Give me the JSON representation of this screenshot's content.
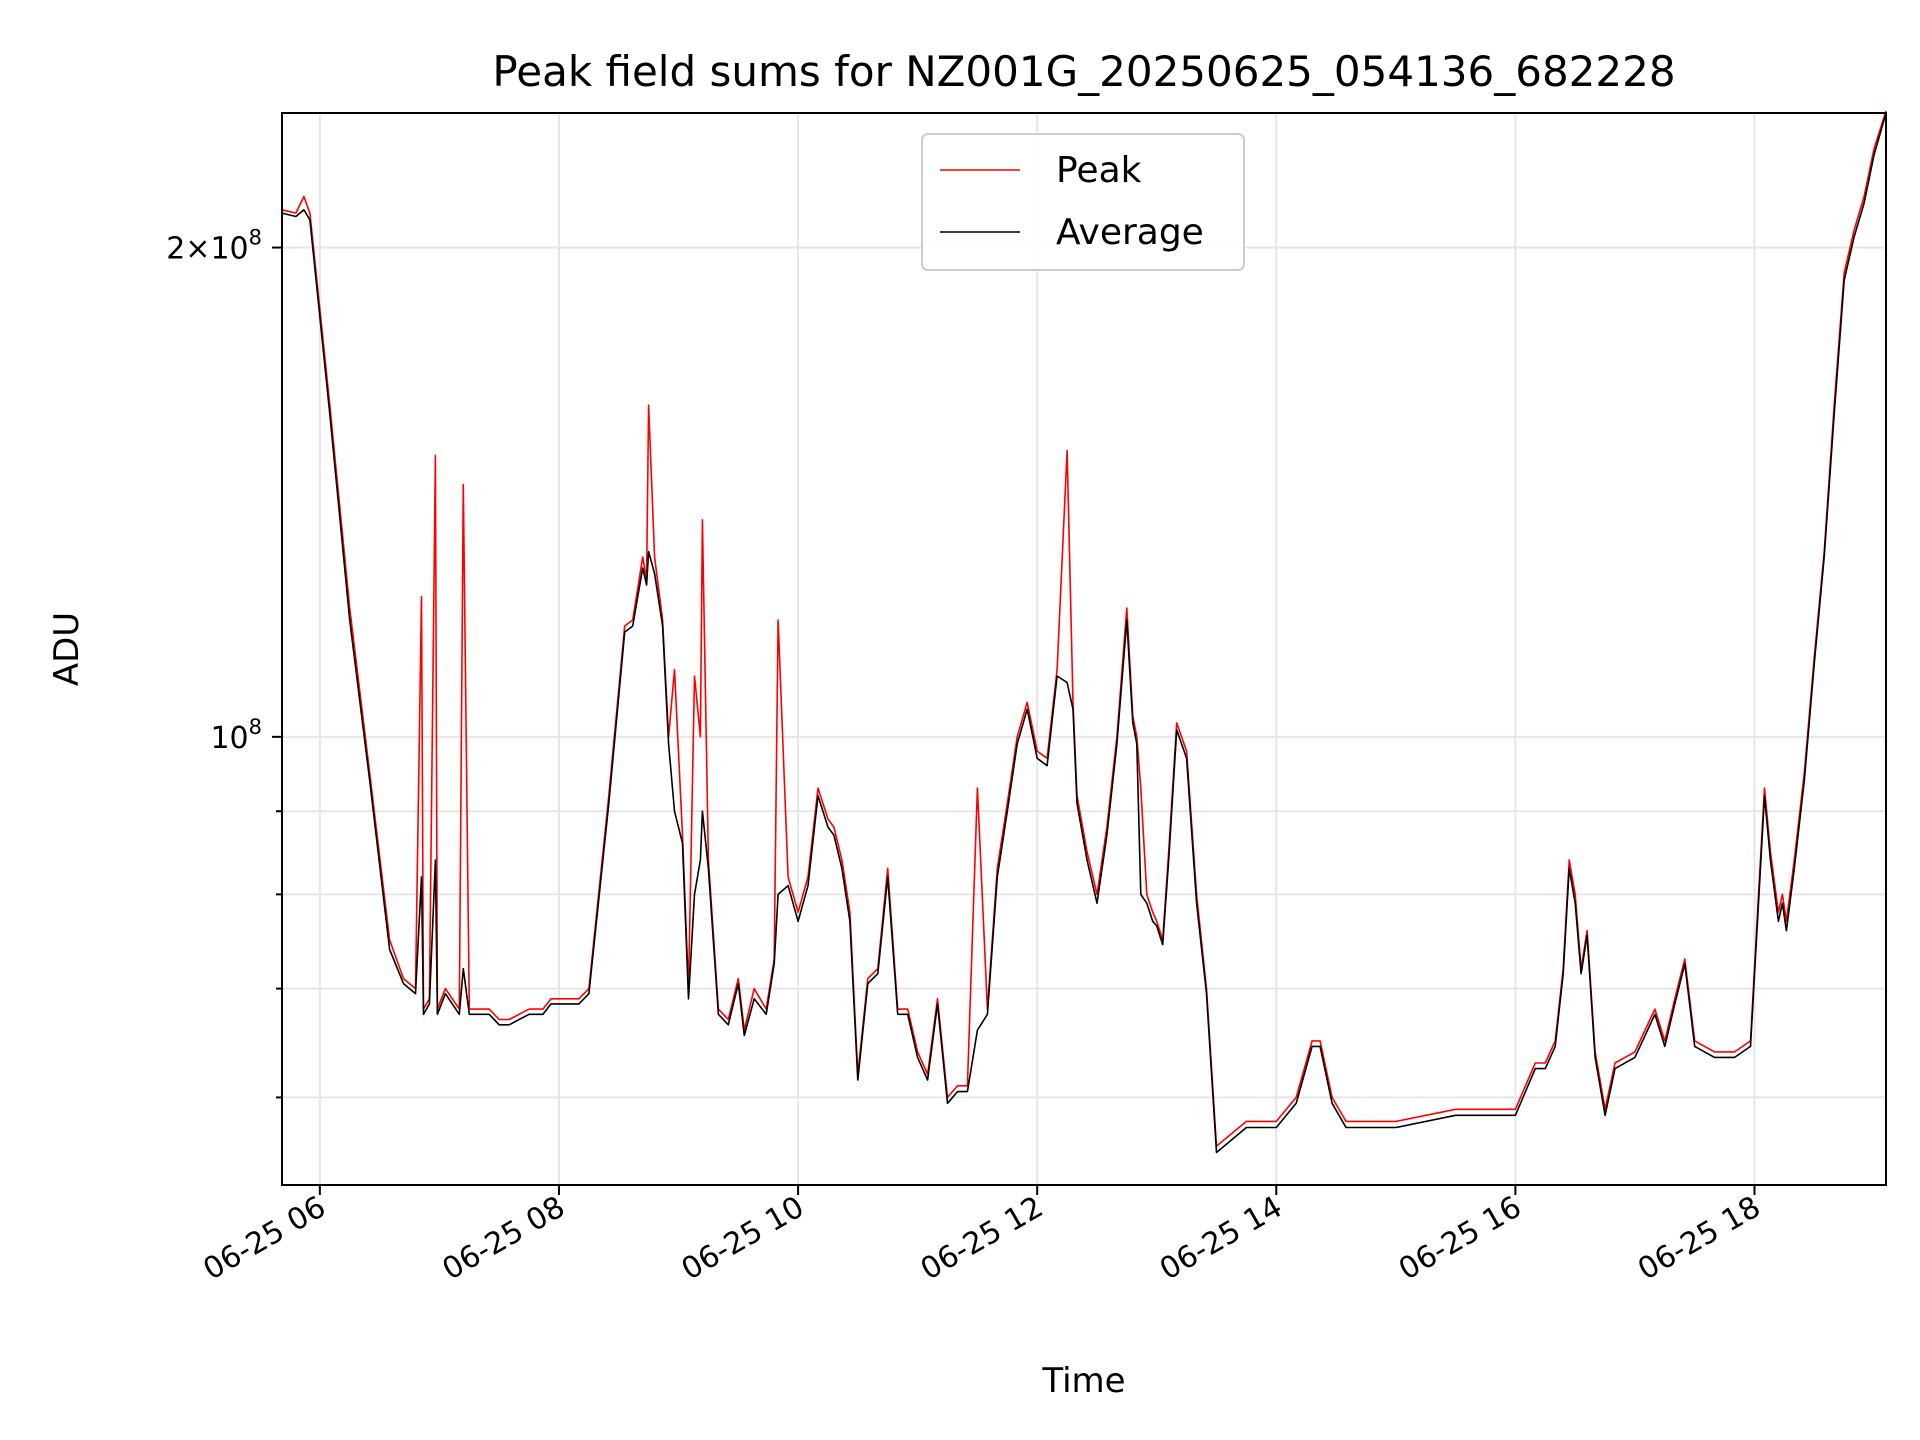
{
  "chart_data": {
    "type": "line",
    "title": "Peak field sums for NZ001G_20250625_054136_682228",
    "xlabel": "Time",
    "ylabel": "ADU",
    "y_scale": "log",
    "grid": true,
    "legend_position": "top-center",
    "xlim": [
      "06-25 05:41",
      "06-25 19:06"
    ],
    "ylim": [
      53000000,
      242000000
    ],
    "x_ticks": [
      "06-25 06",
      "06-25 08",
      "06-25 10",
      "06-25 12",
      "06-25 14",
      "06-25 16",
      "06-25 18"
    ],
    "y_ticks": [
      {
        "value": 100000000,
        "base": "10",
        "exp": "8",
        "mult": ""
      },
      {
        "value": 200000000,
        "base": "10",
        "exp": "8",
        "mult": "2×"
      }
    ],
    "series": [
      {
        "name": "Peak",
        "color": "#ff0000",
        "x": [
          "06-25 05:41",
          "06-25 05:48",
          "06-25 05:52",
          "06-25 05:55",
          "06-25 06:05",
          "06-25 06:15",
          "06-25 06:25",
          "06-25 06:35",
          "06-25 06:42",
          "06-25 06:48",
          "06-25 06:51",
          "06-25 06:52",
          "06-25 06:55",
          "06-25 06:58",
          "06-25 06:59",
          "06-25 07:03",
          "06-25 07:10",
          "06-25 07:12",
          "06-25 07:15",
          "06-25 07:20",
          "06-25 07:25",
          "06-25 07:30",
          "06-25 07:35",
          "06-25 07:40",
          "06-25 07:45",
          "06-25 07:50",
          "06-25 07:52",
          "06-25 07:56",
          "06-25 08:05",
          "06-25 08:10",
          "06-25 08:15",
          "06-25 08:25",
          "06-25 08:33",
          "06-25 08:37",
          "06-25 08:42",
          "06-25 08:44",
          "06-25 08:45",
          "06-25 08:48",
          "06-25 08:52",
          "06-25 08:55",
          "06-25 08:58",
          "06-25 09:02",
          "06-25 09:05",
          "06-25 09:08",
          "06-25 09:11",
          "06-25 09:12",
          "06-25 09:15",
          "06-25 09:20",
          "06-25 09:25",
          "06-25 09:30",
          "06-25 09:33",
          "06-25 09:38",
          "06-25 09:44",
          "06-25 09:48",
          "06-25 09:50",
          "06-25 09:55",
          "06-25 10:00",
          "06-25 10:05",
          "06-25 10:10",
          "06-25 10:15",
          "06-25 10:18",
          "06-25 10:22",
          "06-25 10:26",
          "06-25 10:30",
          "06-25 10:35",
          "06-25 10:40",
          "06-25 10:45",
          "06-25 10:50",
          "06-25 10:55",
          "06-25 11:00",
          "06-25 11:05",
          "06-25 11:10",
          "06-25 11:15",
          "06-25 11:20",
          "06-25 11:25",
          "06-25 11:30",
          "06-25 11:35",
          "06-25 11:40",
          "06-25 11:45",
          "06-25 11:50",
          "06-25 11:55",
          "06-25 12:00",
          "06-25 12:05",
          "06-25 12:10",
          "06-25 12:15",
          "06-25 12:18",
          "06-25 12:20",
          "06-25 12:25",
          "06-25 12:30",
          "06-25 12:35",
          "06-25 12:40",
          "06-25 12:45",
          "06-25 12:48",
          "06-25 12:50",
          "06-25 12:52",
          "06-25 12:55",
          "06-25 12:58",
          "06-25 13:00",
          "06-25 13:03",
          "06-25 13:06",
          "06-25 13:10",
          "06-25 13:15",
          "06-25 13:20",
          "06-25 13:25",
          "06-25 13:30",
          "06-25 13:45",
          "06-25 14:00",
          "06-25 14:10",
          "06-25 14:18",
          "06-25 14:22",
          "06-25 14:28",
          "06-25 14:35",
          "06-25 15:00",
          "06-25 15:30",
          "06-25 16:00",
          "06-25 16:10",
          "06-25 16:15",
          "06-25 16:20",
          "06-25 16:24",
          "06-25 16:27",
          "06-25 16:30",
          "06-25 16:33",
          "06-25 16:36",
          "06-25 16:40",
          "06-25 16:45",
          "06-25 16:50",
          "06-25 17:00",
          "06-25 17:10",
          "06-25 17:15",
          "06-25 17:20",
          "06-25 17:25",
          "06-25 17:30",
          "06-25 17:40",
          "06-25 17:50",
          "06-25 17:58",
          "06-25 18:02",
          "06-25 18:05",
          "06-25 18:08",
          "06-25 18:12",
          "06-25 18:14",
          "06-25 18:16",
          "06-25 18:20",
          "06-25 18:25",
          "06-25 18:30",
          "06-25 18:35",
          "06-25 18:40",
          "06-25 18:45",
          "06-25 18:50",
          "06-25 18:55",
          "06-25 19:00",
          "06-25 19:06"
        ],
        "values": [
          211000000,
          210000000,
          215000000,
          210000000,
          160000000,
          120000000,
          95000000,
          75000000,
          71000000,
          70000000,
          122000000,
          68000000,
          69000000,
          149000000,
          68000000,
          70000000,
          68000000,
          143000000,
          68000000,
          68000000,
          68000000,
          67000000,
          67000000,
          67500000,
          68000000,
          68000000,
          68000000,
          69000000,
          69000000,
          69000000,
          70000000,
          92000000,
          117000000,
          118000000,
          129000000,
          125000000,
          160000000,
          129000000,
          118000000,
          100000000,
          110000000,
          87000000,
          70000000,
          109000000,
          100000000,
          136000000,
          84000000,
          68000000,
          67000000,
          71000000,
          66000000,
          70000000,
          68000000,
          73000000,
          118000000,
          82000000,
          78000000,
          82000000,
          93000000,
          89000000,
          88000000,
          84000000,
          78000000,
          62000000,
          71000000,
          72000000,
          83000000,
          68000000,
          68000000,
          64000000,
          62000000,
          69000000,
          60000000,
          61000000,
          61000000,
          93000000,
          68000000,
          83000000,
          91000000,
          100000000,
          105000000,
          98000000,
          97000000,
          110000000,
          150000000,
          105000000,
          92000000,
          85000000,
          80000000,
          88000000,
          100000000,
          120000000,
          103000000,
          100000000,
          93000000,
          80000000,
          78000000,
          77000000,
          75000000,
          85000000,
          102000000,
          98000000,
          80000000,
          70000000,
          56000000,
          58000000,
          58000000,
          60000000,
          65000000,
          65000000,
          60000000,
          58000000,
          58000000,
          59000000,
          59000000,
          63000000,
          63000000,
          65000000,
          72000000,
          84000000,
          80000000,
          72000000,
          76000000,
          64000000,
          59000000,
          63000000,
          64000000,
          68000000,
          65000000,
          69000000,
          73000000,
          65000000,
          64000000,
          64000000,
          65000000,
          80000000,
          93000000,
          85000000,
          78000000,
          80000000,
          77000000,
          84000000,
          95000000,
          112000000,
          130000000,
          160000000,
          193000000,
          205000000,
          215000000,
          230000000,
          244000000
        ]
      },
      {
        "name": "Average",
        "color": "#000000",
        "x": [
          "06-25 05:41",
          "06-25 05:48",
          "06-25 05:52",
          "06-25 05:55",
          "06-25 06:05",
          "06-25 06:15",
          "06-25 06:25",
          "06-25 06:35",
          "06-25 06:42",
          "06-25 06:48",
          "06-25 06:51",
          "06-25 06:52",
          "06-25 06:55",
          "06-25 06:58",
          "06-25 06:59",
          "06-25 07:03",
          "06-25 07:10",
          "06-25 07:12",
          "06-25 07:15",
          "06-25 07:20",
          "06-25 07:25",
          "06-25 07:30",
          "06-25 07:35",
          "06-25 07:40",
          "06-25 07:45",
          "06-25 07:50",
          "06-25 07:52",
          "06-25 07:56",
          "06-25 08:05",
          "06-25 08:10",
          "06-25 08:15",
          "06-25 08:25",
          "06-25 08:33",
          "06-25 08:37",
          "06-25 08:42",
          "06-25 08:44",
          "06-25 08:45",
          "06-25 08:48",
          "06-25 08:52",
          "06-25 08:55",
          "06-25 08:58",
          "06-25 09:02",
          "06-25 09:05",
          "06-25 09:08",
          "06-25 09:11",
          "06-25 09:12",
          "06-25 09:15",
          "06-25 09:20",
          "06-25 09:25",
          "06-25 09:30",
          "06-25 09:33",
          "06-25 09:38",
          "06-25 09:44",
          "06-25 09:48",
          "06-25 09:50",
          "06-25 09:55",
          "06-25 10:00",
          "06-25 10:05",
          "06-25 10:10",
          "06-25 10:15",
          "06-25 10:18",
          "06-25 10:22",
          "06-25 10:26",
          "06-25 10:30",
          "06-25 10:35",
          "06-25 10:40",
          "06-25 10:45",
          "06-25 10:50",
          "06-25 10:55",
          "06-25 11:00",
          "06-25 11:05",
          "06-25 11:10",
          "06-25 11:15",
          "06-25 11:20",
          "06-25 11:25",
          "06-25 11:30",
          "06-25 11:35",
          "06-25 11:40",
          "06-25 11:45",
          "06-25 11:50",
          "06-25 11:55",
          "06-25 12:00",
          "06-25 12:05",
          "06-25 12:10",
          "06-25 12:15",
          "06-25 12:18",
          "06-25 12:20",
          "06-25 12:25",
          "06-25 12:30",
          "06-25 12:35",
          "06-25 12:40",
          "06-25 12:45",
          "06-25 12:48",
          "06-25 12:50",
          "06-25 12:52",
          "06-25 12:55",
          "06-25 12:58",
          "06-25 13:00",
          "06-25 13:03",
          "06-25 13:06",
          "06-25 13:10",
          "06-25 13:15",
          "06-25 13:20",
          "06-25 13:25",
          "06-25 13:30",
          "06-25 13:45",
          "06-25 14:00",
          "06-25 14:10",
          "06-25 14:18",
          "06-25 14:22",
          "06-25 14:28",
          "06-25 14:35",
          "06-25 15:00",
          "06-25 15:30",
          "06-25 16:00",
          "06-25 16:10",
          "06-25 16:15",
          "06-25 16:20",
          "06-25 16:24",
          "06-25 16:27",
          "06-25 16:30",
          "06-25 16:33",
          "06-25 16:36",
          "06-25 16:40",
          "06-25 16:45",
          "06-25 16:50",
          "06-25 17:00",
          "06-25 17:10",
          "06-25 17:15",
          "06-25 17:20",
          "06-25 17:25",
          "06-25 17:30",
          "06-25 17:40",
          "06-25 17:50",
          "06-25 17:58",
          "06-25 18:02",
          "06-25 18:05",
          "06-25 18:08",
          "06-25 18:12",
          "06-25 18:14",
          "06-25 18:16",
          "06-25 18:20",
          "06-25 18:25",
          "06-25 18:30",
          "06-25 18:35",
          "06-25 18:40",
          "06-25 18:45",
          "06-25 18:50",
          "06-25 18:55",
          "06-25 19:00",
          "06-25 19:06"
        ],
        "values": [
          210000000,
          209000000,
          211000000,
          208000000,
          158000000,
          118000000,
          94000000,
          74000000,
          70500000,
          69500000,
          82000000,
          67500000,
          68500000,
          84000000,
          67500000,
          69500000,
          67500000,
          72000000,
          67500000,
          67500000,
          67500000,
          66500000,
          66500000,
          67000000,
          67500000,
          67500000,
          67500000,
          68500000,
          68500000,
          68500000,
          69500000,
          91000000,
          116000000,
          117000000,
          127000000,
          124000000,
          130000000,
          126000000,
          117000000,
          99000000,
          90000000,
          86000000,
          69000000,
          80000000,
          84000000,
          90000000,
          83000000,
          67500000,
          66500000,
          70500000,
          65500000,
          69000000,
          67500000,
          72500000,
          80000000,
          81000000,
          77000000,
          81000000,
          92000000,
          88000000,
          87000000,
          83000000,
          77000000,
          61500000,
          70500000,
          71500000,
          82000000,
          67500000,
          67500000,
          63500000,
          61500000,
          68500000,
          59500000,
          60500000,
          60500000,
          66000000,
          67500000,
          82000000,
          90000000,
          99000000,
          104000000,
          97000000,
          96000000,
          109000000,
          108000000,
          104000000,
          91000000,
          84000000,
          79000000,
          87000000,
          99000000,
          118000000,
          102000000,
          99000000,
          80000000,
          79000000,
          77000000,
          76500000,
          74500000,
          84000000,
          101000000,
          97000000,
          79000000,
          69500000,
          55500000,
          57500000,
          57500000,
          59500000,
          64500000,
          64500000,
          59500000,
          57500000,
          57500000,
          58500000,
          58500000,
          62500000,
          62500000,
          64500000,
          71500000,
          83000000,
          79000000,
          71500000,
          75500000,
          63500000,
          58500000,
          62500000,
          63500000,
          67500000,
          64500000,
          68500000,
          72500000,
          64500000,
          63500000,
          63500000,
          64500000,
          79000000,
          92000000,
          84000000,
          77000000,
          79000000,
          76000000,
          83000000,
          94000000,
          111000000,
          129000000,
          158000000,
          191000000,
          203000000,
          213000000,
          228000000,
          242000000
        ]
      }
    ]
  }
}
